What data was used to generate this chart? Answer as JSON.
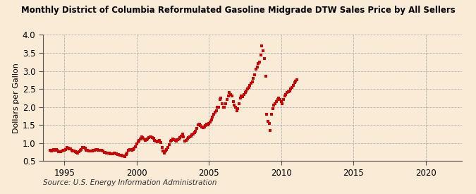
{
  "title": "Monthly District of Columbia Reformulated Gasoline Midgrade DTW Sales Price by All Sellers",
  "ylabel": "Dollars per Gallon",
  "source": "Source: U.S. Energy Information Administration",
  "background_color": "#faebd7",
  "marker_color": "#cc0000",
  "xlim_start": 1993.5,
  "xlim_end": 2022.5,
  "ylim": [
    0.5,
    4.0
  ],
  "yticks": [
    0.5,
    1.0,
    1.5,
    2.0,
    2.5,
    3.0,
    3.5,
    4.0
  ],
  "xticks": [
    1995,
    2000,
    2005,
    2010,
    2015,
    2020
  ],
  "data": [
    [
      1994.0,
      0.79
    ],
    [
      1994.08,
      0.78
    ],
    [
      1994.17,
      0.8
    ],
    [
      1994.25,
      0.82
    ],
    [
      1994.33,
      0.8
    ],
    [
      1994.42,
      0.81
    ],
    [
      1994.5,
      0.79
    ],
    [
      1994.58,
      0.76
    ],
    [
      1994.67,
      0.75
    ],
    [
      1994.75,
      0.76
    ],
    [
      1994.83,
      0.78
    ],
    [
      1994.92,
      0.79
    ],
    [
      1995.0,
      0.8
    ],
    [
      1995.08,
      0.82
    ],
    [
      1995.17,
      0.88
    ],
    [
      1995.25,
      0.85
    ],
    [
      1995.33,
      0.84
    ],
    [
      1995.42,
      0.83
    ],
    [
      1995.5,
      0.8
    ],
    [
      1995.58,
      0.78
    ],
    [
      1995.67,
      0.77
    ],
    [
      1995.75,
      0.75
    ],
    [
      1995.83,
      0.74
    ],
    [
      1995.92,
      0.73
    ],
    [
      1996.0,
      0.76
    ],
    [
      1996.08,
      0.8
    ],
    [
      1996.17,
      0.82
    ],
    [
      1996.25,
      0.87
    ],
    [
      1996.33,
      0.88
    ],
    [
      1996.42,
      0.86
    ],
    [
      1996.5,
      0.8
    ],
    [
      1996.58,
      0.79
    ],
    [
      1996.67,
      0.78
    ],
    [
      1996.75,
      0.78
    ],
    [
      1996.83,
      0.77
    ],
    [
      1996.92,
      0.77
    ],
    [
      1997.0,
      0.79
    ],
    [
      1997.08,
      0.8
    ],
    [
      1997.17,
      0.81
    ],
    [
      1997.25,
      0.82
    ],
    [
      1997.33,
      0.8
    ],
    [
      1997.42,
      0.79
    ],
    [
      1997.5,
      0.79
    ],
    [
      1997.58,
      0.8
    ],
    [
      1997.67,
      0.77
    ],
    [
      1997.75,
      0.74
    ],
    [
      1997.83,
      0.74
    ],
    [
      1997.92,
      0.73
    ],
    [
      1998.0,
      0.73
    ],
    [
      1998.08,
      0.72
    ],
    [
      1998.17,
      0.71
    ],
    [
      1998.25,
      0.71
    ],
    [
      1998.33,
      0.7
    ],
    [
      1998.42,
      0.73
    ],
    [
      1998.5,
      0.72
    ],
    [
      1998.58,
      0.7
    ],
    [
      1998.67,
      0.69
    ],
    [
      1998.75,
      0.68
    ],
    [
      1998.83,
      0.67
    ],
    [
      1998.92,
      0.66
    ],
    [
      1999.0,
      0.65
    ],
    [
      1999.08,
      0.64
    ],
    [
      1999.17,
      0.63
    ],
    [
      1999.25,
      0.68
    ],
    [
      1999.33,
      0.73
    ],
    [
      1999.42,
      0.8
    ],
    [
      1999.5,
      0.82
    ],
    [
      1999.58,
      0.82
    ],
    [
      1999.67,
      0.8
    ],
    [
      1999.75,
      0.82
    ],
    [
      1999.83,
      0.86
    ],
    [
      1999.92,
      0.9
    ],
    [
      2000.0,
      0.97
    ],
    [
      2000.08,
      1.03
    ],
    [
      2000.17,
      1.08
    ],
    [
      2000.25,
      1.12
    ],
    [
      2000.33,
      1.17
    ],
    [
      2000.42,
      1.15
    ],
    [
      2000.5,
      1.12
    ],
    [
      2000.58,
      1.08
    ],
    [
      2000.67,
      1.1
    ],
    [
      2000.75,
      1.12
    ],
    [
      2000.83,
      1.15
    ],
    [
      2000.92,
      1.17
    ],
    [
      2001.0,
      1.18
    ],
    [
      2001.08,
      1.16
    ],
    [
      2001.17,
      1.13
    ],
    [
      2001.25,
      1.08
    ],
    [
      2001.33,
      1.05
    ],
    [
      2001.42,
      1.03
    ],
    [
      2001.5,
      1.05
    ],
    [
      2001.58,
      1.08
    ],
    [
      2001.67,
      1.02
    ],
    [
      2001.75,
      0.88
    ],
    [
      2001.83,
      0.78
    ],
    [
      2001.92,
      0.73
    ],
    [
      2002.0,
      0.78
    ],
    [
      2002.08,
      0.82
    ],
    [
      2002.17,
      0.88
    ],
    [
      2002.25,
      0.95
    ],
    [
      2002.33,
      1.05
    ],
    [
      2002.42,
      1.08
    ],
    [
      2002.5,
      1.12
    ],
    [
      2002.58,
      1.1
    ],
    [
      2002.67,
      1.08
    ],
    [
      2002.75,
      1.05
    ],
    [
      2002.83,
      1.1
    ],
    [
      2002.92,
      1.12
    ],
    [
      2003.0,
      1.15
    ],
    [
      2003.08,
      1.2
    ],
    [
      2003.17,
      1.25
    ],
    [
      2003.25,
      1.18
    ],
    [
      2003.33,
      1.05
    ],
    [
      2003.42,
      1.08
    ],
    [
      2003.5,
      1.12
    ],
    [
      2003.58,
      1.15
    ],
    [
      2003.67,
      1.18
    ],
    [
      2003.75,
      1.2
    ],
    [
      2003.83,
      1.22
    ],
    [
      2003.92,
      1.25
    ],
    [
      2004.0,
      1.28
    ],
    [
      2004.08,
      1.32
    ],
    [
      2004.17,
      1.4
    ],
    [
      2004.25,
      1.5
    ],
    [
      2004.33,
      1.52
    ],
    [
      2004.42,
      1.48
    ],
    [
      2004.5,
      1.45
    ],
    [
      2004.58,
      1.43
    ],
    [
      2004.67,
      1.45
    ],
    [
      2004.75,
      1.48
    ],
    [
      2004.83,
      1.52
    ],
    [
      2004.92,
      1.5
    ],
    [
      2005.0,
      1.55
    ],
    [
      2005.08,
      1.58
    ],
    [
      2005.17,
      1.65
    ],
    [
      2005.25,
      1.72
    ],
    [
      2005.33,
      1.8
    ],
    [
      2005.42,
      1.85
    ],
    [
      2005.5,
      1.9
    ],
    [
      2005.58,
      2.0
    ],
    [
      2005.67,
      2.0
    ],
    [
      2005.75,
      2.2
    ],
    [
      2005.83,
      2.25
    ],
    [
      2005.92,
      2.1
    ],
    [
      2006.0,
      2.0
    ],
    [
      2006.08,
      2.0
    ],
    [
      2006.17,
      2.1
    ],
    [
      2006.25,
      2.2
    ],
    [
      2006.33,
      2.3
    ],
    [
      2006.42,
      2.4
    ],
    [
      2006.5,
      2.35
    ],
    [
      2006.58,
      2.3
    ],
    [
      2006.67,
      2.15
    ],
    [
      2006.75,
      2.05
    ],
    [
      2006.83,
      2.0
    ],
    [
      2006.92,
      1.9
    ],
    [
      2007.0,
      1.95
    ],
    [
      2007.08,
      2.1
    ],
    [
      2007.17,
      2.25
    ],
    [
      2007.25,
      2.3
    ],
    [
      2007.33,
      2.28
    ],
    [
      2007.42,
      2.35
    ],
    [
      2007.5,
      2.4
    ],
    [
      2007.58,
      2.45
    ],
    [
      2007.67,
      2.5
    ],
    [
      2007.75,
      2.55
    ],
    [
      2007.83,
      2.6
    ],
    [
      2007.92,
      2.65
    ],
    [
      2008.0,
      2.7
    ],
    [
      2008.08,
      2.8
    ],
    [
      2008.17,
      2.9
    ],
    [
      2008.25,
      3.05
    ],
    [
      2008.33,
      3.1
    ],
    [
      2008.42,
      3.2
    ],
    [
      2008.5,
      3.25
    ],
    [
      2008.58,
      3.45
    ],
    [
      2008.67,
      3.7
    ],
    [
      2008.75,
      3.55
    ],
    [
      2008.83,
      3.35
    ],
    [
      2008.92,
      2.85
    ],
    [
      2009.0,
      1.8
    ],
    [
      2009.08,
      1.6
    ],
    [
      2009.17,
      1.55
    ],
    [
      2009.25,
      1.35
    ],
    [
      2009.33,
      1.8
    ],
    [
      2009.42,
      1.95
    ],
    [
      2009.5,
      2.05
    ],
    [
      2009.58,
      2.1
    ],
    [
      2009.67,
      2.15
    ],
    [
      2009.75,
      2.2
    ],
    [
      2009.83,
      2.25
    ],
    [
      2009.92,
      2.2
    ],
    [
      2010.0,
      2.15
    ],
    [
      2010.08,
      2.1
    ],
    [
      2010.17,
      2.2
    ],
    [
      2010.25,
      2.3
    ],
    [
      2010.33,
      2.35
    ],
    [
      2010.42,
      2.4
    ],
    [
      2010.5,
      2.42
    ],
    [
      2010.58,
      2.45
    ],
    [
      2010.67,
      2.5
    ],
    [
      2010.75,
      2.55
    ],
    [
      2010.83,
      2.6
    ],
    [
      2010.92,
      2.68
    ],
    [
      2011.0,
      2.72
    ],
    [
      2011.08,
      2.75
    ]
  ]
}
